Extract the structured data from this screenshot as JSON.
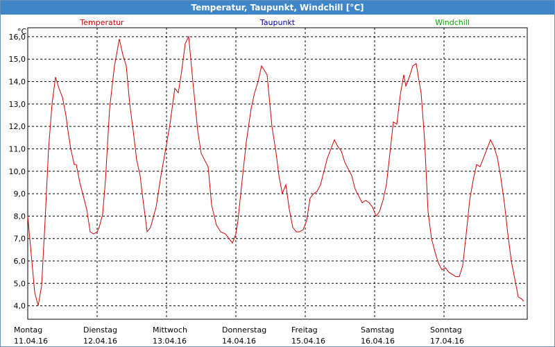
{
  "window": {
    "title": "Temperatur, Taupunkt, Windchill [°C]"
  },
  "colors": {
    "temperatur": "#cc0000",
    "taupunkt": "#0000aa",
    "windchill": "#00aa00",
    "titlebar": "#3f86c8",
    "grid": "#000000"
  },
  "chart_data": {
    "type": "line",
    "ylabel": "°C",
    "ylim": [
      3.4,
      16.4
    ],
    "yticks": [
      "4,0",
      "5,0",
      "6,0",
      "7,0",
      "8,0",
      "9,0",
      "10,0",
      "11,0",
      "12,0",
      "13,0",
      "14,0",
      "15,0",
      "16,0"
    ],
    "ytick_values": [
      4,
      5,
      6,
      7,
      8,
      9,
      10,
      11,
      12,
      13,
      14,
      15,
      16
    ],
    "xlim_days": [
      0,
      7.2
    ],
    "x_unit": "days from Montag 11.04.16 00:00",
    "days": [
      {
        "name": "Montag",
        "date": "11.04.16"
      },
      {
        "name": "Dienstag",
        "date": "12.04.16"
      },
      {
        "name": "Mittwoch",
        "date": "13.04.16"
      },
      {
        "name": "Donnerstag",
        "date": "14.04.16"
      },
      {
        "name": "Freitag",
        "date": "15.04.16"
      },
      {
        "name": "Samstag",
        "date": "16.04.16"
      },
      {
        "name": "Sonntag",
        "date": "17.04.16"
      }
    ],
    "legend": [
      "Temperatur",
      "Taupunkt",
      "Windchill"
    ],
    "grid": true,
    "series": [
      {
        "name": "Temperatur",
        "x": [
          0.0,
          0.05,
          0.1,
          0.15,
          0.2,
          0.25,
          0.3,
          0.35,
          0.4,
          0.45,
          0.5,
          0.55,
          0.58,
          0.62,
          0.67,
          0.7,
          0.75,
          0.8,
          0.85,
          0.9,
          0.95,
          1.0,
          1.03,
          1.08,
          1.12,
          1.18,
          1.25,
          1.32,
          1.37,
          1.42,
          1.47,
          1.52,
          1.57,
          1.62,
          1.65,
          1.7,
          1.72,
          1.77,
          1.85,
          1.92,
          2.0,
          2.05,
          2.12,
          2.17,
          2.22,
          2.27,
          2.32,
          2.38,
          2.45,
          2.5,
          2.55,
          2.6,
          2.65,
          2.68,
          2.72,
          2.78,
          2.85,
          2.9,
          2.95,
          3.0,
          3.03,
          3.08,
          3.15,
          3.22,
          3.27,
          3.32,
          3.37,
          3.45,
          3.52,
          3.58,
          3.62,
          3.67,
          3.72,
          3.77,
          3.82,
          3.87,
          3.92,
          3.97,
          4.02,
          4.07,
          4.12,
          4.17,
          4.22,
          4.27,
          4.32,
          4.37,
          4.42,
          4.47,
          4.52,
          4.57,
          4.62,
          4.67,
          4.72,
          4.77,
          4.82,
          4.87,
          4.92,
          4.97,
          5.02,
          5.07,
          5.12,
          5.17,
          5.22,
          5.27,
          5.32,
          5.37,
          5.42,
          5.45,
          5.5,
          5.55,
          5.6,
          5.63,
          5.67,
          5.72,
          5.77,
          5.82,
          5.87,
          5.92,
          5.97,
          6.02,
          6.07,
          6.12,
          6.17,
          6.22,
          6.27,
          6.32,
          6.37,
          6.42,
          6.47,
          6.52,
          6.57,
          6.62,
          6.67,
          6.72,
          6.77,
          6.82,
          6.87,
          6.92,
          6.97,
          7.02,
          7.07,
          7.12,
          7.15
        ],
        "y": [
          8.0,
          6.3,
          4.6,
          4.0,
          4.9,
          7.8,
          11.0,
          13.0,
          14.2,
          13.7,
          13.3,
          12.5,
          11.8,
          11.0,
          10.3,
          10.3,
          9.5,
          8.9,
          8.3,
          7.3,
          7.2,
          7.3,
          7.5,
          8.1,
          9.6,
          12.8,
          14.7,
          15.9,
          15.2,
          14.7,
          13.0,
          11.8,
          10.5,
          9.8,
          9.0,
          7.8,
          7.3,
          7.5,
          8.4,
          9.8,
          11.2,
          12.1,
          13.7,
          13.5,
          14.5,
          15.7,
          16.0,
          14.0,
          11.8,
          10.8,
          10.5,
          10.2,
          8.5,
          8.1,
          7.6,
          7.3,
          7.2,
          7.0,
          6.8,
          7.2,
          7.8,
          9.3,
          11.3,
          12.8,
          13.5,
          14.0,
          14.7,
          14.3,
          12.0,
          10.8,
          9.8,
          9.0,
          9.4,
          8.3,
          7.5,
          7.3,
          7.3,
          7.4,
          7.8,
          8.8,
          9.0,
          9.1,
          9.4,
          10.0,
          10.6,
          11.0,
          11.4,
          11.1,
          10.9,
          10.4,
          10.1,
          9.8,
          9.2,
          8.9,
          8.6,
          8.7,
          8.6,
          8.4,
          8.0,
          8.2,
          8.7,
          9.4,
          10.8,
          12.2,
          12.1,
          13.4,
          14.3,
          13.8,
          14.2,
          14.7,
          14.8,
          14.2,
          13.5,
          11.4,
          8.2,
          7.0,
          6.4,
          5.9,
          5.6,
          5.7,
          5.5,
          5.4,
          5.3,
          5.3,
          5.8,
          7.2,
          8.7,
          9.6,
          10.3,
          10.2,
          10.6,
          11.0,
          11.4,
          11.1,
          10.6,
          9.7,
          8.6,
          7.2,
          6.0,
          5.2,
          4.4,
          4.3,
          4.2
        ],
        "color": "#cc0000"
      }
    ]
  }
}
